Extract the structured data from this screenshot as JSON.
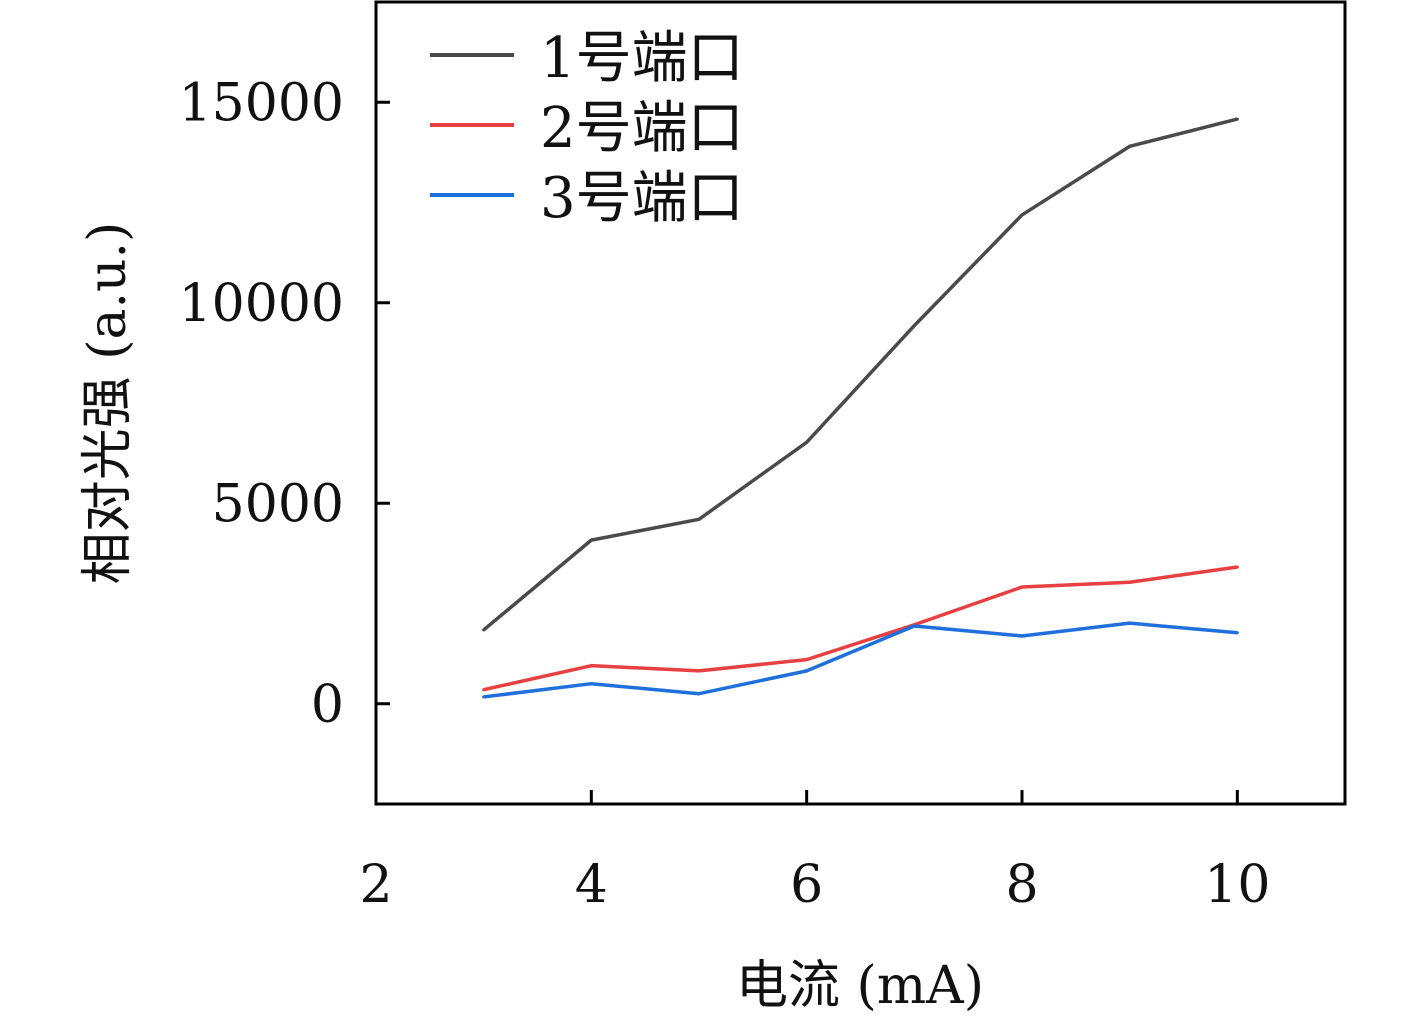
{
  "chart_data": {
    "type": "line",
    "title": "",
    "xlabel": "电流 (mA)",
    "ylabel": "相对光强 (a.u.)",
    "xlim": [
      2,
      11
    ],
    "ylim": [
      -2500,
      17500
    ],
    "xticks": [
      2,
      4,
      6,
      8,
      10
    ],
    "yticks": [
      0,
      5000,
      10000,
      15000
    ],
    "xtick_labels": [
      "2",
      "4",
      "6",
      "8",
      "10"
    ],
    "ytick_labels": [
      "0",
      "5000",
      "10000",
      "15000"
    ],
    "grid": false,
    "legend_position": "top-left",
    "x": [
      3,
      4,
      5,
      6,
      7,
      8,
      9,
      10
    ],
    "series": [
      {
        "name": "1号端口",
        "color": "#4a4a4a",
        "values": [
          1840,
          4080,
          4600,
          6520,
          9430,
          12190,
          13900,
          14580
        ]
      },
      {
        "name": "2号端口",
        "color": "#e84040",
        "values": [
          350,
          950,
          820,
          1100,
          1970,
          2910,
          3030,
          3410
        ]
      },
      {
        "name": "3号端口",
        "color": "#1f6fdc",
        "values": [
          170,
          500,
          250,
          820,
          1940,
          1690,
          2010,
          1770
        ]
      }
    ]
  }
}
